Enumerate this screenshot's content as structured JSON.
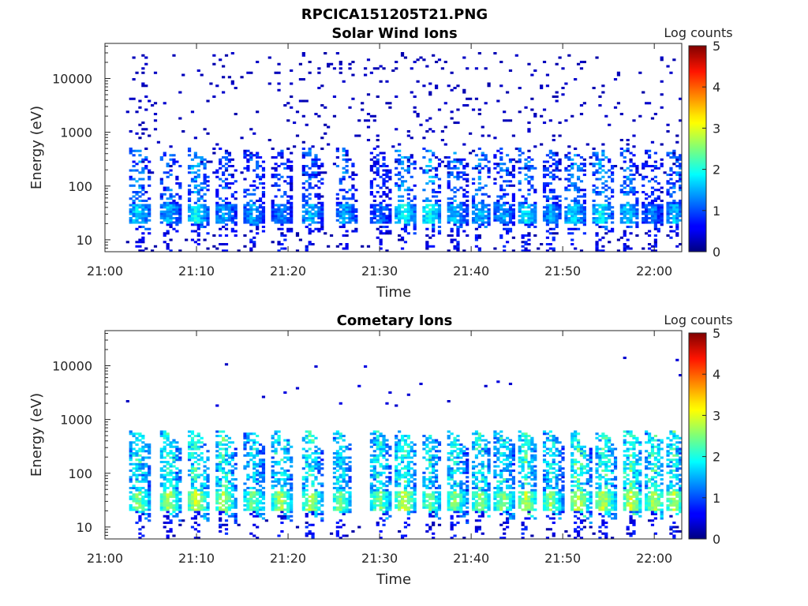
{
  "figure": {
    "title": "RPCICA151205T21.PNG"
  },
  "colormap": "jet",
  "chart_data": [
    {
      "type": "heatmap",
      "title": "Solar Wind Ions",
      "xlabel": "Time",
      "ylabel": "Energy (eV)",
      "y_scale": "log",
      "ylim": [
        6,
        45000
      ],
      "xlim": [
        "21:00",
        "22:03"
      ],
      "xticks": [
        "21:00",
        "21:10",
        "21:20",
        "21:30",
        "21:40",
        "21:50",
        "22:00"
      ],
      "yticks": [
        "10",
        "100",
        "1000",
        "10000"
      ],
      "colorbar": {
        "label": "Log counts",
        "range": [
          0,
          5
        ],
        "ticks": [
          "0",
          "1",
          "2",
          "3",
          "4",
          "5"
        ]
      },
      "burst_times_min": [
        3.5,
        6.8,
        9.8,
        12.8,
        16.0,
        19.0,
        22.3,
        26.0,
        29.8,
        32.5,
        35.3,
        38.0,
        40.8,
        43.3,
        45.8,
        48.5,
        51.0,
        54.0,
        57.0,
        59.5,
        62.0
      ],
      "burst_peak_log_counts": [
        1.8,
        1.6,
        2.0,
        1.5,
        1.5,
        1.3,
        1.6,
        1.5,
        1.2,
        2.0,
        2.0,
        1.6,
        1.6,
        1.5,
        1.8,
        1.4,
        1.8,
        1.9,
        1.7,
        1.3,
        1.6
      ],
      "band_energy_eV": [
        20,
        45
      ],
      "burst_max_energy_eV": 500,
      "scatter_energy_range_eV": [
        150,
        30000
      ],
      "scatter_log_counts": 0.2
    },
    {
      "type": "heatmap",
      "title": "Cometary Ions",
      "xlabel": "Time",
      "ylabel": "Energy (eV)",
      "y_scale": "log",
      "ylim": [
        6,
        45000
      ],
      "xlim": [
        "21:00",
        "22:03"
      ],
      "xticks": [
        "21:00",
        "21:10",
        "21:20",
        "21:30",
        "21:40",
        "21:50",
        "22:00"
      ],
      "yticks": [
        "10",
        "100",
        "1000",
        "10000"
      ],
      "colorbar": {
        "label": "Log counts",
        "range": [
          0,
          5
        ],
        "ticks": [
          "0",
          "1",
          "2",
          "3",
          "4",
          "5"
        ]
      },
      "burst_times_min": [
        3.5,
        6.8,
        9.8,
        12.8,
        16.0,
        19.0,
        22.3,
        25.5,
        29.8,
        32.5,
        35.3,
        38.0,
        40.8,
        43.3,
        45.8,
        48.5,
        51.5,
        54.3,
        57.3,
        59.8,
        62.0
      ],
      "burst_peak_log_counts": [
        2.6,
        2.8,
        3.0,
        2.8,
        2.5,
        2.8,
        2.8,
        2.5,
        2.6,
        3.0,
        2.5,
        2.6,
        2.7,
        2.6,
        2.8,
        2.6,
        3.0,
        2.9,
        3.0,
        2.8,
        2.7
      ],
      "band_energy_eV": [
        20,
        45
      ],
      "burst_max_energy_eV": 600,
      "scatter_energy_range_eV": [
        1500,
        15000
      ],
      "scatter_log_counts": 0.3
    }
  ]
}
